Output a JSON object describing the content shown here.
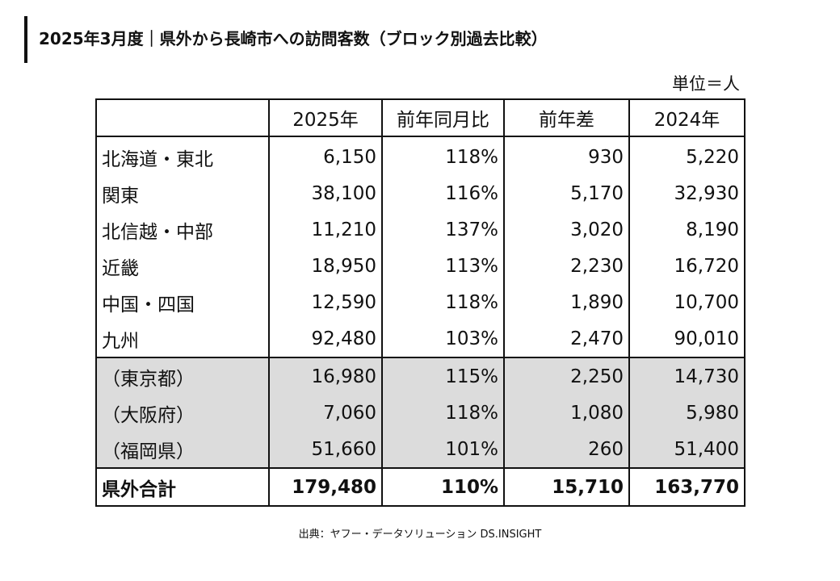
{
  "title": "2025年3月度｜県外から長崎市への訪問客数（ブロック別過去比較）",
  "unit": "単位＝人",
  "source": "出典：ヤフー・データソリューション DS.INSIGHT",
  "chart_data": {
    "type": "table",
    "columns": [
      "",
      "2025年",
      "前年同月比",
      "前年差",
      "2024年"
    ],
    "rows": [
      {
        "label": "北海道・東北",
        "v2025": "6,150",
        "yoy": "118%",
        "diff": "930",
        "v2024": "5,220"
      },
      {
        "label": "関東",
        "v2025": "38,100",
        "yoy": "116%",
        "diff": "5,170",
        "v2024": "32,930"
      },
      {
        "label": "北信越・中部",
        "v2025": "11,210",
        "yoy": "137%",
        "diff": "3,020",
        "v2024": "8,190"
      },
      {
        "label": "近畿",
        "v2025": "18,950",
        "yoy": "113%",
        "diff": "2,230",
        "v2024": "16,720"
      },
      {
        "label": "中国・四国",
        "v2025": "12,590",
        "yoy": "118%",
        "diff": "1,890",
        "v2024": "10,700"
      },
      {
        "label": "九州",
        "v2025": "92,480",
        "yoy": "103%",
        "diff": "2,470",
        "v2024": "90,010"
      }
    ],
    "sub_rows": [
      {
        "label": "（東京都）",
        "v2025": "16,980",
        "yoy": "115%",
        "diff": "2,250",
        "v2024": "14,730"
      },
      {
        "label": "（大阪府）",
        "v2025": "7,060",
        "yoy": "118%",
        "diff": "1,080",
        "v2024": "5,980"
      },
      {
        "label": "（福岡県）",
        "v2025": "51,660",
        "yoy": "101%",
        "diff": "260",
        "v2024": "51,400"
      }
    ],
    "total": {
      "label": "県外合計",
      "v2025": "179,480",
      "yoy": "110%",
      "diff": "15,710",
      "v2024": "163,770"
    },
    "highlight_color": "#dcdcdc"
  }
}
